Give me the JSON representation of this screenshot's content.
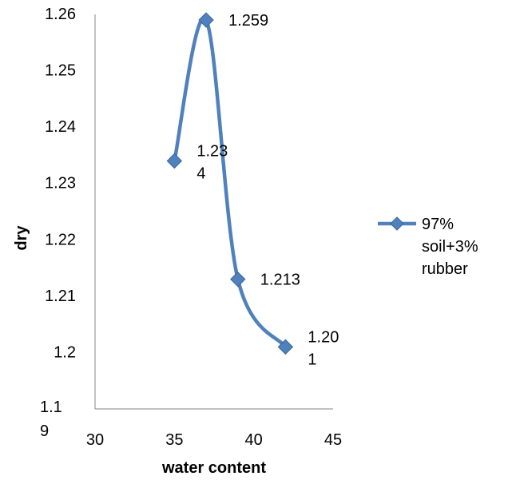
{
  "chart_data": {
    "type": "line",
    "title": "",
    "xlabel": "water content",
    "ylabel": "dry",
    "xlim": [
      30,
      45
    ],
    "ylim": [
      1.19,
      1.26
    ],
    "x_ticks": [
      "30",
      "35",
      "40",
      "45"
    ],
    "y_ticks": [
      "1.26",
      "1.25",
      "1.24",
      "1.23",
      "1.22",
      "1.21",
      "1.2"
    ],
    "y_min_label_lines": [
      "1.1",
      "9"
    ],
    "grid": false,
    "smooth": true,
    "legend_position": "right",
    "series": [
      {
        "name_lines": [
          "97%",
          "soil+3%",
          "rubber"
        ],
        "color": "#4F81BD",
        "marker": "diamond",
        "x": [
          35,
          37,
          39,
          42
        ],
        "y": [
          1.234,
          1.259,
          1.213,
          1.201
        ],
        "data_labels": [
          [
            "1.23",
            "4"
          ],
          [
            "1.259"
          ],
          [
            "1.213"
          ],
          [
            "1.20",
            "1"
          ]
        ]
      }
    ]
  }
}
